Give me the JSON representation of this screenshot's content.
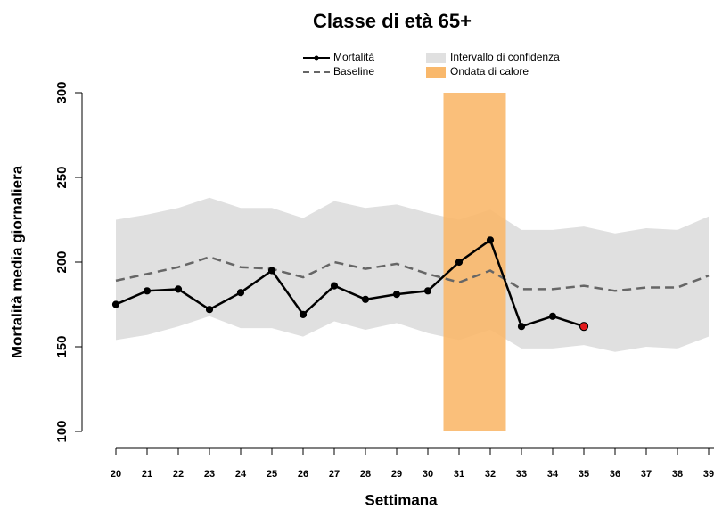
{
  "chart_data": {
    "type": "line",
    "title": "Classe di età 65+",
    "x_label": "Settimana",
    "y_label": "Mortalità media giornaliera",
    "x": [
      20,
      21,
      22,
      23,
      24,
      25,
      26,
      27,
      28,
      29,
      30,
      31,
      32,
      33,
      34,
      35,
      36,
      37,
      38,
      39
    ],
    "series": [
      {
        "name": "Mortalità",
        "color": "#000000",
        "style": "solid-points",
        "values": [
          175,
          183,
          184,
          172,
          182,
          195,
          169,
          186,
          178,
          181,
          183,
          200,
          213,
          162,
          168,
          162,
          null,
          null,
          null,
          null
        ]
      },
      {
        "name": "Baseline",
        "color": "#666666",
        "style": "dashed",
        "values": [
          189,
          193,
          197,
          203,
          197,
          196,
          191,
          200,
          196,
          199,
          193,
          188,
          195,
          184,
          184,
          186,
          183,
          185,
          185,
          192
        ]
      }
    ],
    "band": {
      "name": "Intervallo di confidenza",
      "color": "#e0e0e0",
      "lower": [
        154,
        157,
        162,
        168,
        161,
        161,
        156,
        165,
        160,
        164,
        158,
        154,
        160,
        149,
        149,
        151,
        147,
        150,
        149,
        156
      ],
      "upper": [
        225,
        228,
        232,
        238,
        232,
        232,
        226,
        236,
        232,
        234,
        229,
        225,
        231,
        219,
        219,
        221,
        217,
        220,
        219,
        227
      ]
    },
    "highlight": {
      "name": "Ondata di calore",
      "color": "#f9b86b",
      "x": [
        30.5,
        32.5
      ]
    },
    "last_point_color": "#e31a1c",
    "xlim": [
      20,
      39
    ],
    "xticks": [
      20,
      21,
      22,
      23,
      24,
      25,
      26,
      27,
      28,
      29,
      30,
      31,
      32,
      33,
      34,
      35,
      36,
      37,
      38,
      39
    ],
    "ylim": [
      100,
      300
    ],
    "yticks": [
      100,
      150,
      200,
      250,
      300
    ]
  }
}
